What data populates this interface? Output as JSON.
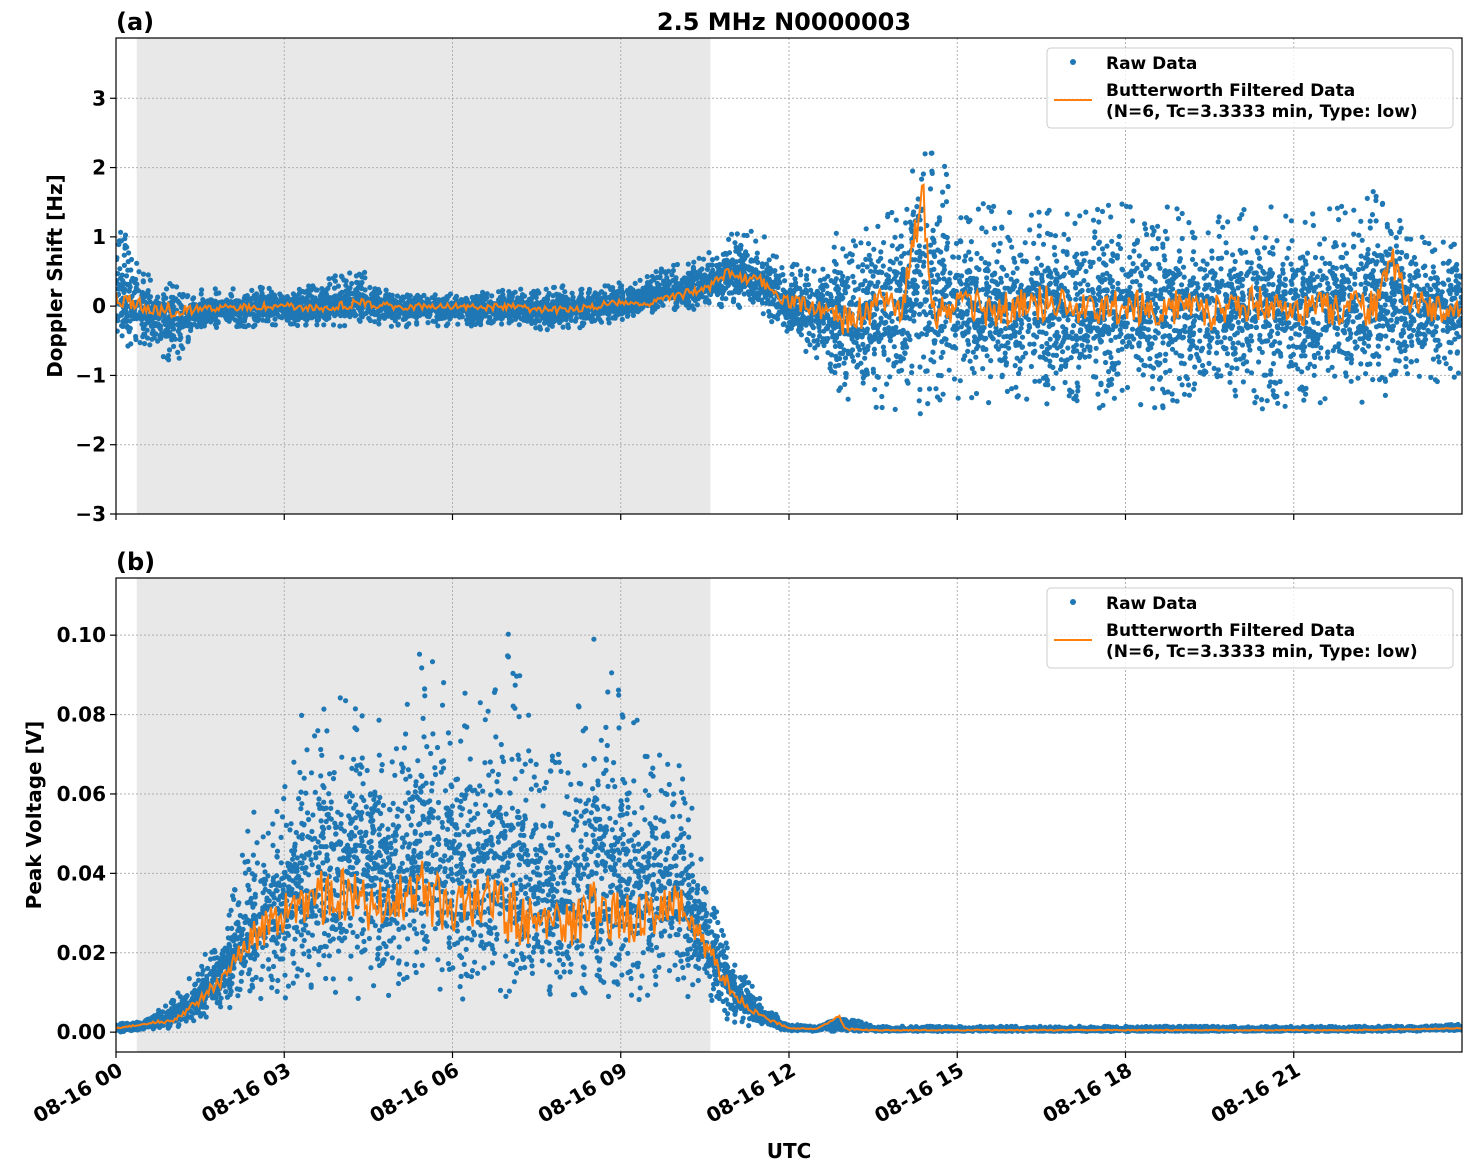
{
  "chart_data": [
    {
      "type": "scatter",
      "panel_label": "(a)",
      "title": "2.5 MHz N0000003",
      "xlabel": "",
      "ylabel": "Doppler Shift [Hz]",
      "x_unit": "hours UTC on 08-16",
      "xlim": [
        0,
        24
      ],
      "ylim": [
        -3,
        3.87
      ],
      "yticks": [
        -3,
        -2,
        -1,
        0,
        1,
        2,
        3
      ],
      "ytick_labels": [
        "−3",
        "−2",
        "−1",
        "0",
        "1",
        "2",
        "3"
      ],
      "grid": true,
      "legend_placement": "upper right",
      "legend": [
        "Raw Data",
        "Butterworth Filtered Data",
        "(N=6, Tc=3.3333 min, Type: low)"
      ],
      "shaded_interval": [
        0.37,
        10.6
      ],
      "colors": {
        "raw": "#1f77b4",
        "filtered": "#ff7f0e",
        "shade": "#e8e8e8"
      },
      "series": [
        {
          "name": "Raw Data",
          "x": [
            0,
            0.5,
            1,
            1.5,
            2,
            2.5,
            3,
            3.5,
            4,
            4.5,
            5,
            5.5,
            6,
            6.5,
            7,
            7.5,
            8,
            8.5,
            9,
            9.5,
            10,
            10.5,
            11,
            11.5,
            12,
            12.5,
            13,
            13.5,
            14,
            14.5,
            15,
            15.5,
            16,
            16.5,
            17,
            17.5,
            18,
            18.5,
            19,
            19.5,
            20,
            20.5,
            21,
            21.5,
            22,
            22.5,
            23,
            23.5,
            24
          ],
          "lower": [
            -0.8,
            -0.6,
            -0.9,
            -0.35,
            -0.3,
            -0.3,
            -0.3,
            -0.3,
            -0.3,
            -0.35,
            -0.3,
            -0.3,
            -0.3,
            -0.3,
            -0.3,
            -0.35,
            -0.35,
            -0.3,
            -0.2,
            -0.1,
            -0.05,
            -0.05,
            0,
            -0.1,
            -0.5,
            -1.0,
            -1.4,
            -1.5,
            -1.5,
            -1.6,
            -1.4,
            -1.4,
            -1.4,
            -1.5,
            -1.4,
            -1.5,
            -1.4,
            -1.5,
            -1.4,
            -1.5,
            -1.4,
            -1.5,
            -1.5,
            -1.4,
            -1.4,
            -1.4,
            -1.2,
            -1.1,
            -1.0
          ],
          "upper": [
            1.3,
            0.5,
            0.35,
            0.25,
            0.25,
            0.3,
            0.25,
            0.3,
            0.5,
            0.5,
            0.2,
            0.2,
            0.2,
            0.2,
            0.25,
            0.25,
            0.3,
            0.3,
            0.35,
            0.5,
            0.6,
            0.8,
            1.1,
            1.1,
            0.6,
            0.9,
            1.2,
            1.4,
            1.6,
            2.8,
            1.5,
            1.5,
            1.5,
            1.6,
            1.4,
            1.5,
            1.5,
            1.4,
            1.5,
            1.4,
            1.4,
            1.5,
            1.4,
            1.4,
            1.5,
            1.7,
            1.3,
            1.1,
            1.0
          ]
        },
        {
          "name": "Butterworth Filtered Data",
          "x": [
            0,
            0.5,
            1,
            1.5,
            2,
            2.5,
            3,
            3.5,
            4,
            4.5,
            5,
            5.5,
            6,
            6.5,
            7,
            7.5,
            8,
            8.5,
            9,
            9.5,
            10,
            10.5,
            11,
            11.5,
            12,
            12.5,
            13,
            13.5,
            14,
            14.4,
            14.5,
            15,
            15.5,
            16,
            16.5,
            17,
            17.5,
            18,
            18.5,
            19,
            19.5,
            20,
            20.5,
            21,
            21.5,
            22,
            22.5,
            22.7,
            23,
            23.5,
            24
          ],
          "y": [
            0.1,
            0.0,
            -0.05,
            -0.05,
            -0.02,
            0.0,
            0.0,
            -0.02,
            0.0,
            0.05,
            -0.02,
            0.0,
            0.0,
            -0.02,
            0.0,
            -0.05,
            -0.05,
            0.0,
            0.05,
            0.05,
            0.15,
            0.25,
            0.5,
            0.35,
            0.05,
            0.0,
            -0.2,
            0.0,
            0.05,
            1.5,
            0.0,
            0.0,
            -0.05,
            0.0,
            0.05,
            0.0,
            -0.05,
            0.0,
            -0.05,
            0.0,
            -0.1,
            0.0,
            0.05,
            -0.05,
            0.0,
            -0.05,
            0.0,
            0.8,
            0.1,
            -0.05,
            -0.05
          ]
        }
      ]
    },
    {
      "type": "scatter",
      "panel_label": "(b)",
      "title": "",
      "xlabel": "UTC",
      "ylabel": "Peak Voltage [V]",
      "x_unit": "hours UTC on 08-16",
      "xlim": [
        0,
        24
      ],
      "ylim": [
        -0.005,
        0.1144
      ],
      "yticks": [
        0,
        0.02,
        0.04,
        0.06,
        0.08,
        0.1
      ],
      "ytick_labels": [
        "0.00",
        "0.02",
        "0.04",
        "0.06",
        "0.08",
        "0.10"
      ],
      "xticks": [
        0,
        3,
        6,
        9,
        12,
        15,
        18,
        21
      ],
      "xtick_labels": [
        "08-16 00",
        "08-16 03",
        "08-16 06",
        "08-16 09",
        "08-16 12",
        "08-16 15",
        "08-16 18",
        "08-16 21"
      ],
      "grid": true,
      "legend_placement": "upper right",
      "legend": [
        "Raw Data",
        "Butterworth Filtered Data",
        "(N=6, Tc=3.3333 min, Type: low)"
      ],
      "shaded_interval": [
        0.37,
        10.6
      ],
      "colors": {
        "raw": "#1f77b4",
        "filtered": "#ff7f0e",
        "shade": "#e8e8e8"
      },
      "series": [
        {
          "name": "Raw Data",
          "x": [
            0,
            0.5,
            1,
            1.5,
            2,
            2.5,
            3,
            3.5,
            4,
            4.5,
            5,
            5.5,
            6,
            6.5,
            7,
            7.5,
            8,
            8.5,
            9,
            9.5,
            10,
            10.5,
            11,
            11.5,
            12,
            12.5,
            13,
            13.5,
            14,
            15,
            16,
            17,
            18,
            19,
            20,
            21,
            22,
            23,
            24
          ],
          "lower": [
            0,
            0.0005,
            0.001,
            0.003,
            0.006,
            0.008,
            0.008,
            0.009,
            0.009,
            0.008,
            0.009,
            0.009,
            0.008,
            0.009,
            0.008,
            0.008,
            0.008,
            0.008,
            0.008,
            0.008,
            0.01,
            0.006,
            0.002,
            0.001,
            0.0002,
            0.0002,
            0.0002,
            0.0002,
            0.0002,
            0.0002,
            0.0002,
            0.0002,
            0.0002,
            0.0002,
            0.0002,
            0.0002,
            0.0002,
            0.0002,
            0.0004
          ],
          "upper": [
            0.002,
            0.003,
            0.008,
            0.018,
            0.03,
            0.06,
            0.065,
            0.09,
            0.085,
            0.09,
            0.075,
            0.1,
            0.09,
            0.085,
            0.105,
            0.07,
            0.07,
            0.1,
            0.09,
            0.075,
            0.07,
            0.045,
            0.02,
            0.008,
            0.002,
            0.0015,
            0.004,
            0.0015,
            0.0015,
            0.0015,
            0.0015,
            0.0015,
            0.0015,
            0.0015,
            0.0015,
            0.0015,
            0.0015,
            0.0015,
            0.002
          ]
        },
        {
          "name": "Butterworth Filtered Data",
          "x": [
            0,
            0.5,
            1,
            1.5,
            2,
            2.5,
            3,
            3.5,
            4,
            4.5,
            5,
            5.5,
            6,
            6.5,
            7,
            7.5,
            8,
            8.5,
            9,
            9.5,
            10,
            10.5,
            11,
            11.5,
            12,
            12.5,
            12.9,
            13,
            13.5,
            14,
            16,
            18,
            20,
            22,
            24
          ],
          "y": [
            0.001,
            0.002,
            0.003,
            0.008,
            0.015,
            0.025,
            0.03,
            0.033,
            0.035,
            0.032,
            0.034,
            0.036,
            0.03,
            0.033,
            0.03,
            0.028,
            0.027,
            0.03,
            0.028,
            0.03,
            0.033,
            0.022,
            0.01,
            0.004,
            0.001,
            0.0008,
            0.004,
            0.0008,
            0.0005,
            0.0005,
            0.0005,
            0.0005,
            0.0005,
            0.0005,
            0.001
          ]
        }
      ]
    }
  ]
}
